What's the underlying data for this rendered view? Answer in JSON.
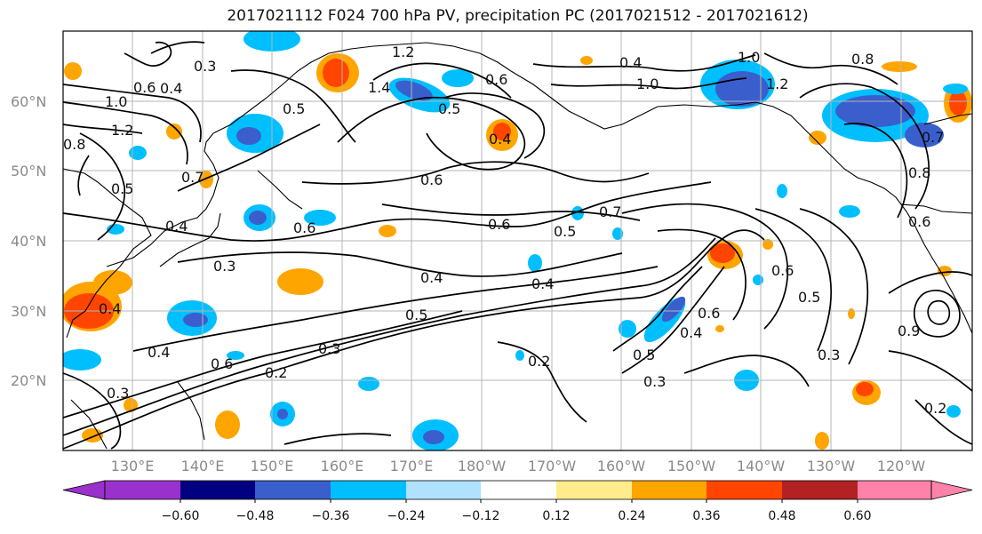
{
  "title": "2017021112 F024 700 hPa PV, precipitation PC (2017021512 - 2017021612)",
  "lat_labels": [
    "60°N",
    "50°N",
    "40°N",
    "30°N",
    "20°N"
  ],
  "lon_labels": [
    "130°E",
    "140°E",
    "150°E",
    "160°E",
    "170°E",
    "180°W",
    "170°W",
    "160°W",
    "150°W",
    "140°W",
    "130°W",
    "120°W"
  ],
  "colorbar": {
    "ticks": [
      "−0.60",
      "−0.48",
      "−0.36",
      "−0.24",
      "−0.12",
      "0.12",
      "0.24",
      "0.36",
      "0.48",
      "0.60"
    ],
    "colors": [
      "#9932cc",
      "#000080",
      "#3a5fcd",
      "#00bfff",
      "#b0e2ff",
      "#ffffff",
      "#ffec8b",
      "#ffa500",
      "#ff4500",
      "#b22222",
      "#ff82ab"
    ]
  },
  "contour_labels": [
    "0.3",
    "0.4",
    "0.5",
    "0.6",
    "0.7",
    "0.8",
    "1.0",
    "1.2",
    "1.4",
    "0.2",
    "0.9"
  ],
  "colors": {
    "text": "#111111",
    "axis_label": "#8a8a8a",
    "grid": "#b5b5b5",
    "contour": "#000000"
  }
}
